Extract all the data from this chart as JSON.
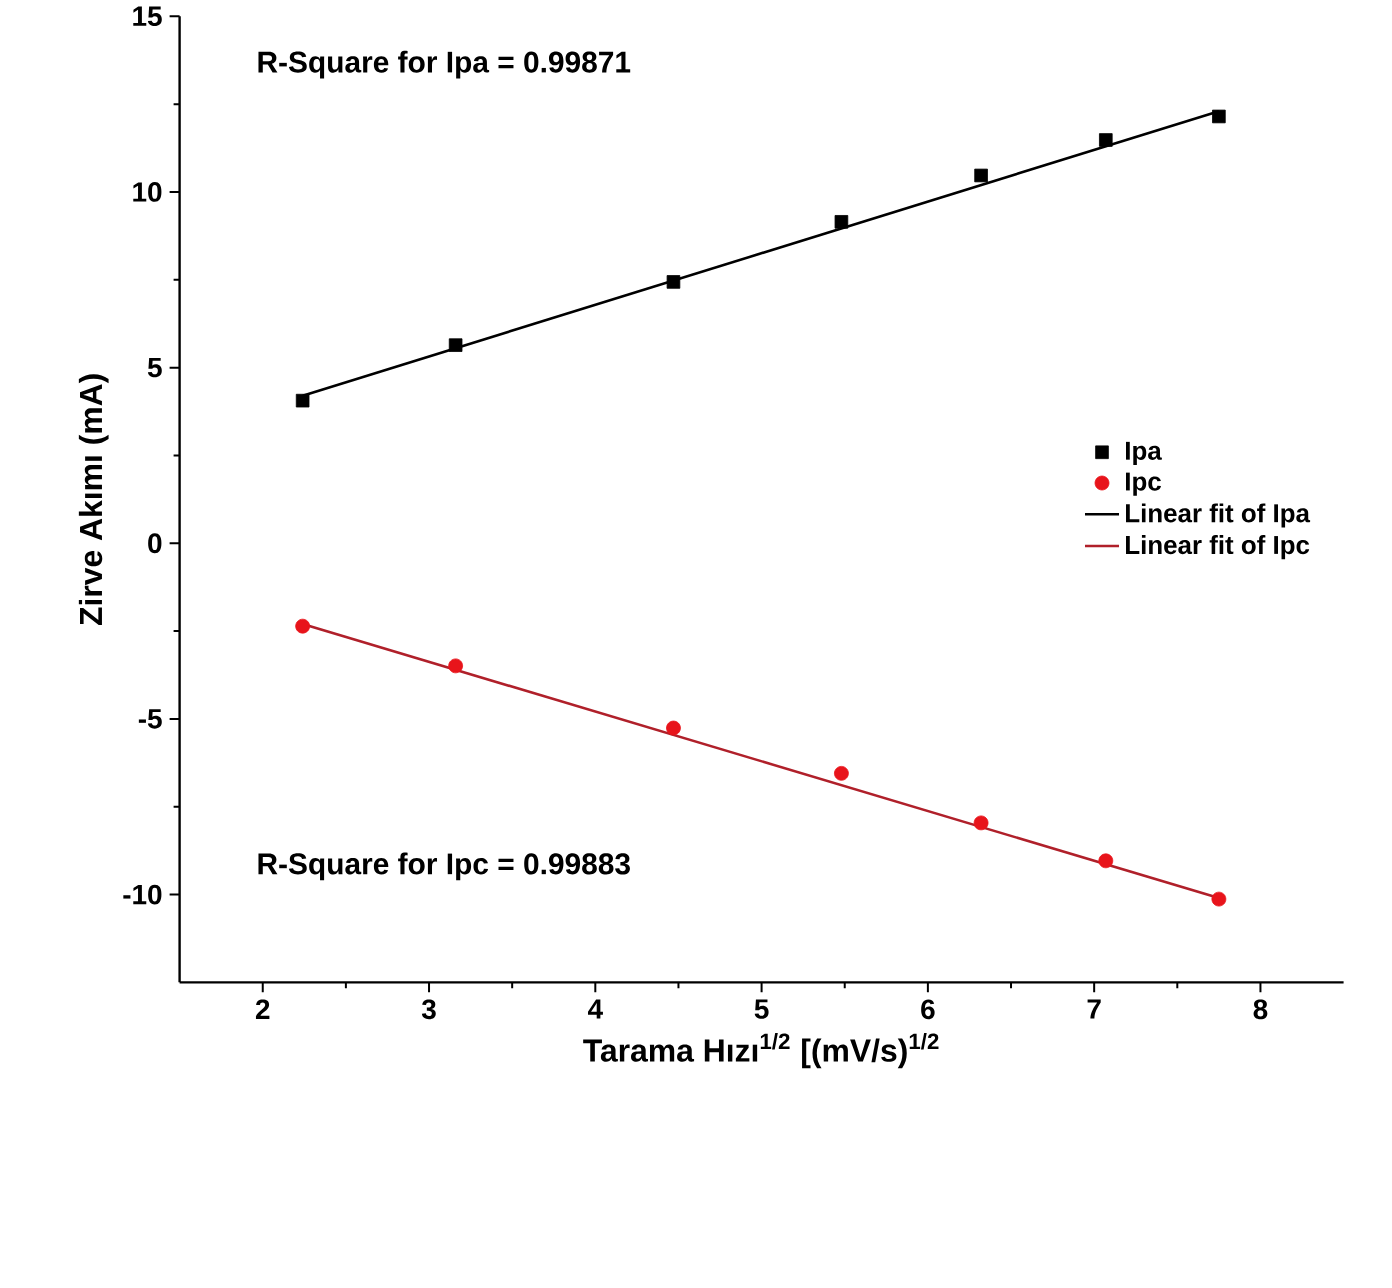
{
  "chart_data": {
    "type": "scatter",
    "xlabel": "Tarama Hızı$^{1/2}$ [(mV/s)$^{1/2}$",
    "ylabel": "Zirve Akımı (mA)",
    "xlim": [
      1.5,
      8.5
    ],
    "xticks": [
      2,
      3,
      4,
      5,
      6,
      7,
      8
    ],
    "ylim": [
      -12.5,
      15
    ],
    "yticks": [
      -10,
      -5,
      0,
      5,
      10,
      15
    ],
    "grid": false,
    "legend": "right",
    "annotations": [
      "R-Square for Ipa = 0.99871",
      "R-Square for Ipc = 0.99883"
    ],
    "series": [
      {
        "name": "Ipa",
        "marker": "square",
        "color": "#000000",
        "x": [
          2.24,
          3.16,
          4.47,
          5.48,
          6.32,
          7.07,
          7.75
        ],
        "values": [
          4.06,
          5.64,
          7.44,
          9.15,
          10.47,
          11.48,
          12.15
        ]
      },
      {
        "name": "Ipc",
        "marker": "circle",
        "color": "#e8141b",
        "x": [
          2.24,
          3.16,
          4.47,
          5.48,
          6.32,
          7.07,
          7.75
        ],
        "values": [
          -2.36,
          -3.49,
          -5.26,
          -6.55,
          -7.96,
          -9.04,
          -10.13
        ]
      },
      {
        "name": "Linear fit of Ipa",
        "type": "line",
        "marker": "none",
        "line_style": "solid",
        "color": "#000000",
        "x": [
          2.24,
          7.75
        ],
        "values": [
          4.2,
          12.3
        ]
      },
      {
        "name": "Linear fit of Ipc",
        "type": "line",
        "marker": "none",
        "line_style": "solid",
        "color": "#b0202a",
        "x": [
          2.24,
          7.75
        ],
        "values": [
          -2.3,
          -10.1
        ]
      }
    ]
  }
}
